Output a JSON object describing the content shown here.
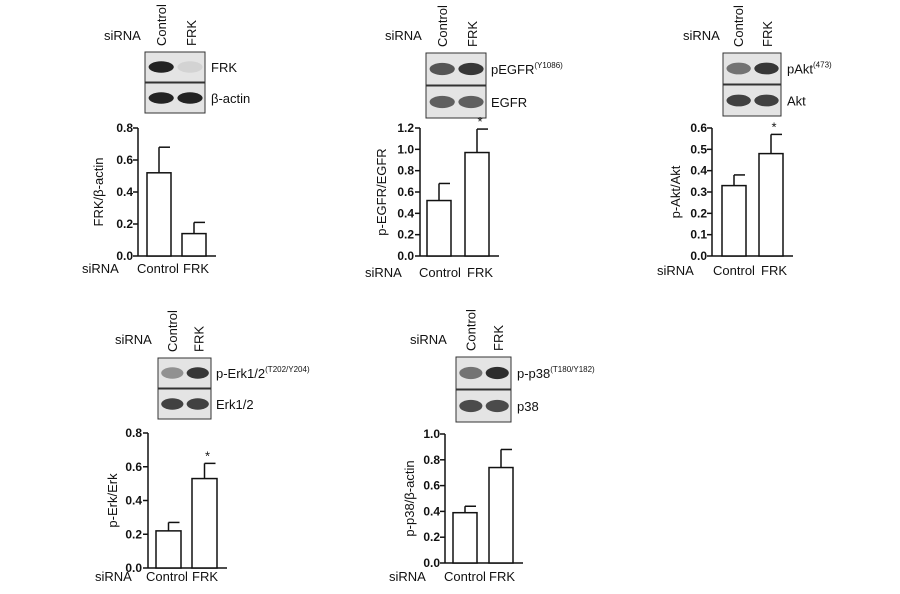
{
  "chart_data": [
    {
      "type": "bar",
      "id": "frk",
      "row_label": "siRNA",
      "categories": [
        "Control",
        "FRK"
      ],
      "values": [
        0.52,
        0.14
      ],
      "errors": [
        0.16,
        0.07
      ],
      "significance": [
        "",
        ""
      ],
      "ylabel": "FRK/β-actin",
      "ylim": [
        0,
        0.8
      ],
      "yticks": [
        "0.0",
        "0.2",
        "0.4",
        "0.6",
        "0.8"
      ],
      "blot_bands": [
        {
          "label": "FRK",
          "sup": "",
          "intensity": [
            1.0,
            0.12
          ]
        },
        {
          "label": "β-actin",
          "sup": "",
          "intensity": [
            1.0,
            1.0
          ]
        }
      ]
    },
    {
      "type": "bar",
      "id": "egfr",
      "row_label": "siRNA",
      "categories": [
        "Control",
        "FRK"
      ],
      "values": [
        0.52,
        0.97
      ],
      "errors": [
        0.16,
        0.22
      ],
      "significance": [
        "",
        "*"
      ],
      "ylabel": "p-EGFR/EGFR",
      "ylim": [
        0,
        1.2
      ],
      "yticks": [
        "0.0",
        "0.2",
        "0.4",
        "0.6",
        "0.8",
        "1.0",
        "1.2"
      ],
      "blot_bands": [
        {
          "label": "pEGFR",
          "sup": "(Y1086)",
          "intensity": [
            0.75,
            0.9
          ]
        },
        {
          "label": "EGFR",
          "sup": "",
          "intensity": [
            0.7,
            0.7
          ]
        }
      ]
    },
    {
      "type": "bar",
      "id": "akt",
      "row_label": "siRNA",
      "categories": [
        "Control",
        "FRK"
      ],
      "values": [
        0.33,
        0.48
      ],
      "errors": [
        0.05,
        0.09
      ],
      "significance": [
        "",
        "*"
      ],
      "ylabel": "p-Akt/Akt",
      "ylim": [
        0,
        0.6
      ],
      "yticks": [
        "0.0",
        "0.1",
        "0.2",
        "0.3",
        "0.4",
        "0.5",
        "0.6"
      ],
      "blot_bands": [
        {
          "label": "pAkt",
          "sup": "(473)",
          "intensity": [
            0.6,
            0.9
          ]
        },
        {
          "label": "Akt",
          "sup": "",
          "intensity": [
            0.85,
            0.85
          ]
        }
      ]
    },
    {
      "type": "bar",
      "id": "erk",
      "row_label": "siRNA",
      "categories": [
        "Control",
        "FRK"
      ],
      "values": [
        0.22,
        0.53
      ],
      "errors": [
        0.05,
        0.09
      ],
      "significance": [
        "",
        "*"
      ],
      "ylabel": "p-Erk/Erk",
      "ylim": [
        0,
        0.8
      ],
      "yticks": [
        "0.0",
        "0.2",
        "0.4",
        "0.6",
        "0.8"
      ],
      "blot_bands": [
        {
          "label": "p-Erk1/2",
          "sup": "(T202/Y204)",
          "intensity": [
            0.45,
            0.9
          ]
        },
        {
          "label": "Erk1/2",
          "sup": "",
          "intensity": [
            0.85,
            0.85
          ]
        }
      ]
    },
    {
      "type": "bar",
      "id": "p38",
      "row_label": "siRNA",
      "categories": [
        "Control",
        "FRK"
      ],
      "values": [
        0.39,
        0.74
      ],
      "errors": [
        0.05,
        0.14
      ],
      "significance": [
        "",
        ""
      ],
      "ylabel": "p-p38/β-actin",
      "ylim": [
        0,
        1.0
      ],
      "yticks": [
        "0.0",
        "0.2",
        "0.4",
        "0.6",
        "0.8",
        "1.0"
      ],
      "blot_bands": [
        {
          "label": "p-p38",
          "sup": "(T180/Y182)",
          "intensity": [
            0.6,
            0.95
          ]
        },
        {
          "label": "p38",
          "sup": "",
          "intensity": [
            0.8,
            0.8
          ]
        }
      ]
    }
  ]
}
